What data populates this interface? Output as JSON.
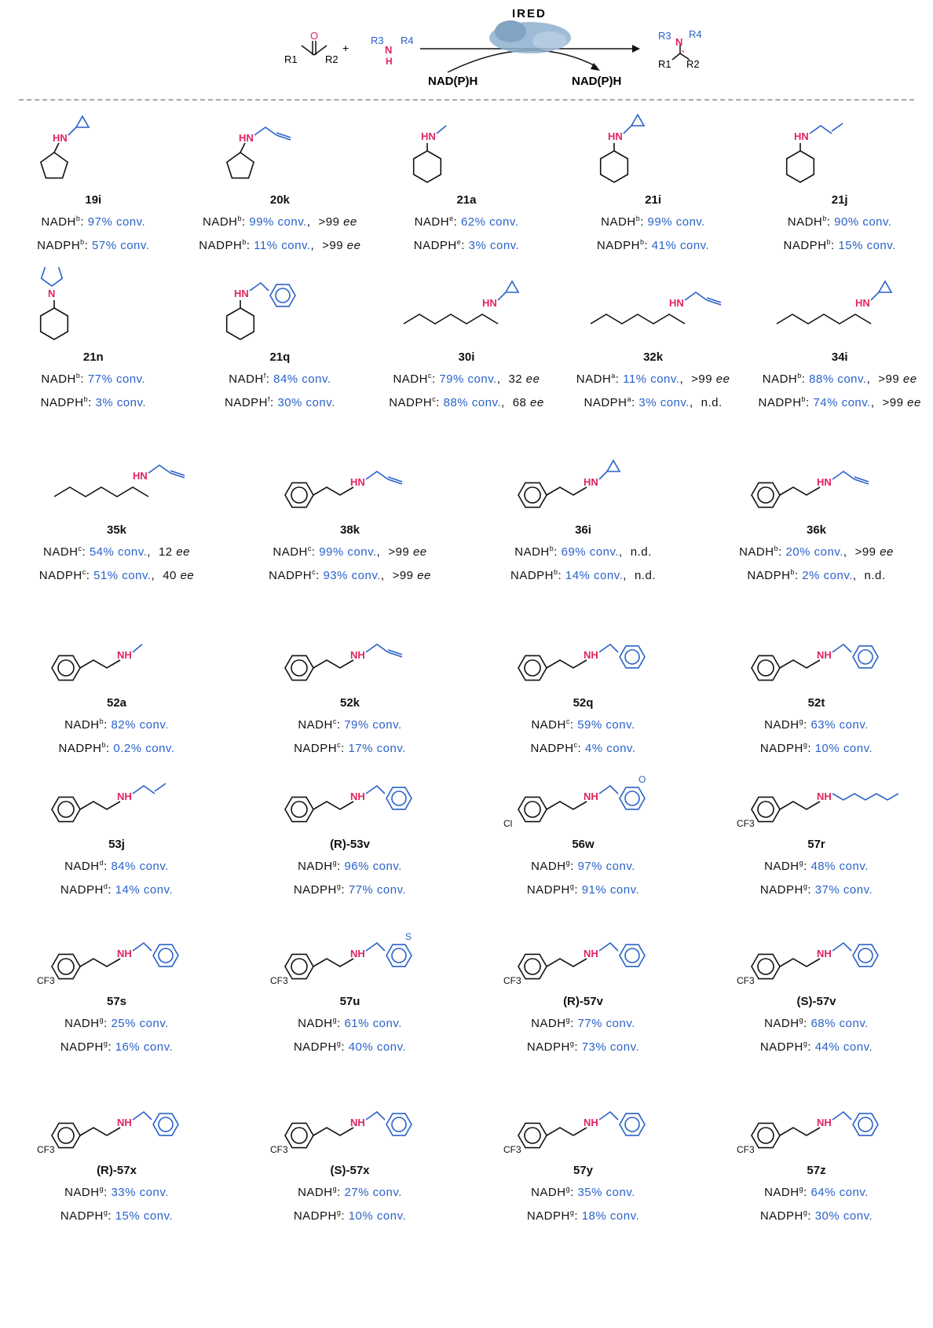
{
  "scheme": {
    "enzyme": "IRED",
    "plus": "+",
    "cofactor_in": "NAD(P)H",
    "cofactor_out": "NAD(P)H",
    "ketone": {
      "r1": "R1",
      "r2": "R2",
      "o": "O"
    },
    "amine": {
      "r3": "R3",
      "r4": "R4",
      "n": "N",
      "h": "H"
    },
    "product": {
      "r1": "R1",
      "r2": "R2",
      "r3": "R3",
      "r4": "R4",
      "n": "N",
      "star": "*"
    }
  },
  "labels": {
    "nadh": "NADH",
    "nadph": "NADPH",
    "conv_suffix": "% conv.",
    "ee": "ee"
  },
  "colors": {
    "conv": "#2a62c9",
    "amine_n": "#e0245e",
    "substituent": "#2a62c9"
  },
  "rows": [
    [
      {
        "id": "19i",
        "ring": "cyclopentyl",
        "n": "HN",
        "sub": "cyclopropyl",
        "nadh": {
          "sup": "b",
          "conv": "97"
        },
        "nadph": {
          "sup": "b",
          "conv": "57"
        }
      },
      {
        "id": "20k",
        "ring": "cyclopentyl",
        "n": "HN",
        "sub": "propargyl",
        "nadh": {
          "sup": "b",
          "conv": "99",
          "ee": ">99"
        },
        "nadph": {
          "sup": "b",
          "conv": "11",
          "ee": ">99"
        }
      },
      {
        "id": "21a",
        "ring": "cyclohexyl",
        "n": "HN",
        "sub": "methyl",
        "nadh": {
          "sup": "e",
          "conv": "62"
        },
        "nadph": {
          "sup": "e",
          "conv": "3"
        }
      },
      {
        "id": "21i",
        "ring": "cyclohexyl",
        "n": "HN",
        "sub": "cyclopropyl",
        "nadh": {
          "sup": "b",
          "conv": "99"
        },
        "nadph": {
          "sup": "b",
          "conv": "41"
        }
      },
      {
        "id": "21j",
        "ring": "cyclohexyl",
        "n": "HN",
        "sub": "allyl",
        "nadh": {
          "sup": "b",
          "conv": "90"
        },
        "nadph": {
          "sup": "b",
          "conv": "15"
        }
      }
    ],
    [
      {
        "id": "21n",
        "ring": "cyclohexyl",
        "n": "N",
        "sub": "pyrrolidine",
        "nadh": {
          "sup": "b",
          "conv": "77"
        },
        "nadph": {
          "sup": "b",
          "conv": "3"
        }
      },
      {
        "id": "21q",
        "ring": "cyclohexyl",
        "n": "HN",
        "sub": "benzyl",
        "nadh": {
          "sup": "f",
          "conv": "84"
        },
        "nadph": {
          "sup": "f",
          "conv": "30"
        }
      },
      {
        "id": "30i",
        "ring": "chain",
        "n": "HN",
        "sub": "cyclopropyl",
        "nadh": {
          "sup": "c",
          "conv": "79",
          "ee": "32"
        },
        "nadph": {
          "sup": "c",
          "conv": "88",
          "ee": "68"
        }
      },
      {
        "id": "32k",
        "ring": "chain",
        "n": "HN",
        "sub": "propargyl",
        "nadh": {
          "sup": "a",
          "conv": "11",
          "ee": ">99"
        },
        "nadph": {
          "sup": "a",
          "conv": "3",
          "ee": "n.d."
        }
      },
      {
        "id": "34i",
        "ring": "chain",
        "n": "HN",
        "sub": "cyclopropyl",
        "nadh": {
          "sup": "b",
          "conv": "88",
          "ee": ">99"
        },
        "nadph": {
          "sup": "b",
          "conv": "74",
          "ee": ">99"
        }
      }
    ],
    [
      {
        "id": "35k",
        "ring": "chain",
        "n": "HN",
        "sub": "propargyl",
        "nadh": {
          "sup": "c",
          "conv": "54",
          "ee": "12"
        },
        "nadph": {
          "sup": "c",
          "conv": "51",
          "ee": "40"
        }
      },
      {
        "id": "38k",
        "ring": "benzene",
        "n": "HN",
        "sub": "propargyl",
        "nadh": {
          "sup": "c",
          "conv": "99",
          "ee": ">99"
        },
        "nadph": {
          "sup": "c",
          "conv": "93",
          "ee": ">99"
        }
      },
      {
        "id": "36i",
        "ring": "benzene",
        "n": "HN",
        "sub": "cyclopropyl",
        "nadh": {
          "sup": "b",
          "conv": "69",
          "ee": "n.d."
        },
        "nadph": {
          "sup": "b",
          "conv": "14",
          "ee": "n.d."
        }
      },
      {
        "id": "36k",
        "ring": "benzene",
        "n": "HN",
        "sub": "propargyl",
        "nadh": {
          "sup": "b",
          "conv": "20",
          "ee": ">99"
        },
        "nadph": {
          "sup": "b",
          "conv": "2",
          "ee": "n.d."
        }
      }
    ],
    [
      {
        "id": "52a",
        "ring": "benzene",
        "n": "NH",
        "sub": "methyl",
        "nadh": {
          "sup": "b",
          "conv": "82"
        },
        "nadph": {
          "sup": "b",
          "conv": "0.2"
        }
      },
      {
        "id": "52k",
        "ring": "benzene",
        "n": "NH",
        "sub": "propargyl",
        "nadh": {
          "sup": "c",
          "conv": "79"
        },
        "nadph": {
          "sup": "c",
          "conv": "17"
        }
      },
      {
        "id": "52q",
        "ring": "benzene",
        "n": "NH",
        "sub": "benzyl",
        "nadh": {
          "sup": "c",
          "conv": "59"
        },
        "nadph": {
          "sup": "c",
          "conv": "4"
        }
      },
      {
        "id": "52t",
        "ring": "benzene",
        "n": "NH",
        "sub": "phenoxyethyl",
        "nadh": {
          "sup": "g",
          "conv": "63"
        },
        "nadph": {
          "sup": "g",
          "conv": "10"
        }
      }
    ],
    [
      {
        "id": "53j",
        "ring": "benzene",
        "n": "NH",
        "sub": "allyl",
        "nadh": {
          "sup": "d",
          "conv": "84"
        },
        "nadph": {
          "sup": "d",
          "conv": "14"
        }
      },
      {
        "id": "(R)-53v",
        "ring": "benzene",
        "n": "NH",
        "sub": "benzyl",
        "nadh": {
          "sup": "g",
          "conv": "96"
        },
        "nadph": {
          "sup": "g",
          "conv": "77"
        }
      },
      {
        "id": "56w",
        "ring": "benzene",
        "n": "NH",
        "ring_label": "Cl",
        "sub": "benzyl",
        "sub_label": "O",
        "nadh": {
          "sup": "g",
          "conv": "97"
        },
        "nadph": {
          "sup": "g",
          "conv": "91"
        }
      },
      {
        "id": "57r",
        "ring": "benzene",
        "n": "NH",
        "ring_label": "CF3",
        "sub": "heptyl",
        "nadh": {
          "sup": "g",
          "conv": "48"
        },
        "nadph": {
          "sup": "g",
          "conv": "37"
        }
      }
    ],
    [
      {
        "id": "57s",
        "ring": "benzene",
        "n": "NH",
        "ring_label": "CF3",
        "sub": "benzyl",
        "nadh": {
          "sup": "g",
          "conv": "25"
        },
        "nadph": {
          "sup": "g",
          "conv": "16"
        }
      },
      {
        "id": "57u",
        "ring": "benzene",
        "n": "NH",
        "ring_label": "CF3",
        "sub": "thiophene",
        "sub_label": "S",
        "nadh": {
          "sup": "g",
          "conv": "61"
        },
        "nadph": {
          "sup": "g",
          "conv": "40"
        }
      },
      {
        "id": "(R)-57v",
        "ring": "benzene",
        "n": "NH",
        "ring_label": "CF3",
        "sub": "benzyl",
        "nadh": {
          "sup": "g",
          "conv": "77"
        },
        "nadph": {
          "sup": "g",
          "conv": "73"
        }
      },
      {
        "id": "(S)-57v",
        "ring": "benzene",
        "n": "NH",
        "ring_label": "CF3",
        "sub": "benzyl",
        "nadh": {
          "sup": "g",
          "conv": "68"
        },
        "nadph": {
          "sup": "g",
          "conv": "44"
        }
      }
    ],
    [
      {
        "id": "(R)-57x",
        "ring": "benzene",
        "n": "NH",
        "ring_label": "CF3",
        "sub": "benzyl",
        "nadh": {
          "sup": "g",
          "conv": "33"
        },
        "nadph": {
          "sup": "g",
          "conv": "15"
        }
      },
      {
        "id": "(S)-57x",
        "ring": "benzene",
        "n": "NH",
        "ring_label": "CF3",
        "sub": "benzyl",
        "nadh": {
          "sup": "g",
          "conv": "27"
        },
        "nadph": {
          "sup": "g",
          "conv": "10"
        }
      },
      {
        "id": "57y",
        "ring": "benzene",
        "n": "NH",
        "ring_label": "CF3",
        "sub": "benzyl",
        "nadh": {
          "sup": "g",
          "conv": "35"
        },
        "nadph": {
          "sup": "g",
          "conv": "18"
        }
      },
      {
        "id": "57z",
        "ring": "benzene",
        "n": "NH",
        "ring_label": "CF3",
        "sub": "benzyl",
        "nadh": {
          "sup": "g",
          "conv": "64"
        },
        "nadph": {
          "sup": "g",
          "conv": "30"
        }
      }
    ]
  ]
}
